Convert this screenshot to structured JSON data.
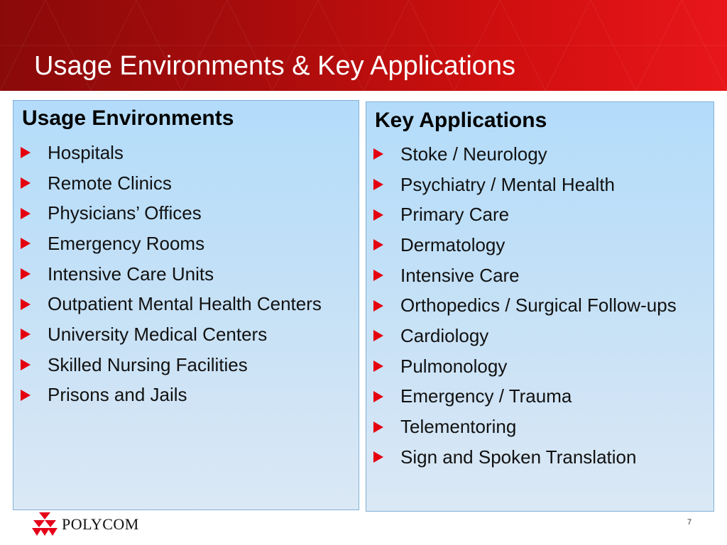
{
  "header": {
    "title": "Usage Environments & Key Applications"
  },
  "left": {
    "heading": "Usage Environments",
    "items": [
      "Hospitals",
      "Remote Clinics",
      "Physicians’ Offices",
      "Emergency Rooms",
      "Intensive Care Units",
      "Outpatient Mental Health Centers",
      "University Medical Centers",
      "Skilled Nursing Facilities",
      "Prisons and Jails"
    ]
  },
  "right": {
    "heading": "Key Applications",
    "items": [
      "Stoke / Neurology",
      "Psychiatry / Mental Health",
      "Primary Care",
      "Dermatology",
      "Intensive Care",
      "Orthopedics / Surgical Follow-ups",
      "Cardiology",
      "Pulmonology",
      "Emergency / Trauma",
      "Telementoring",
      "Sign and Spoken Translation"
    ]
  },
  "footer": {
    "logo_text": "POLYCOM",
    "page_number": "7"
  },
  "colors": {
    "header_red": "#c00d0d",
    "bullet_red": "#e5000f",
    "box_blue": "#b3dcfa"
  }
}
